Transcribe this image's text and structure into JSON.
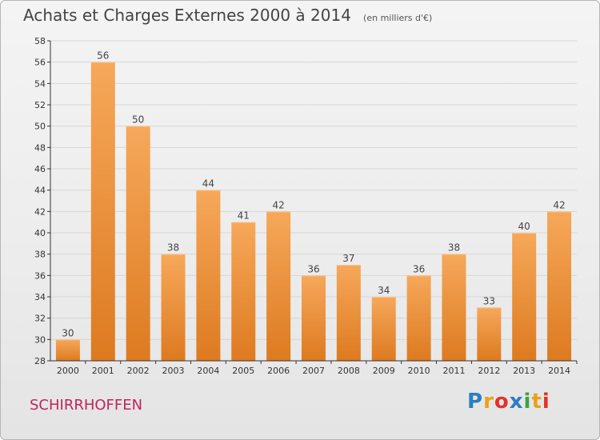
{
  "header": {
    "title": "Achats et Charges Externes 2000 à 2014",
    "subtitle": "(en milliers d'€)"
  },
  "footer": {
    "commune": "SCHIRRHOFFEN",
    "logo_text": "Proxiti",
    "logo_colors": [
      "#2a7fc0",
      "#e8a21a",
      "#e2322c",
      "#2a7fc0",
      "#3aa14a",
      "#e8a21a",
      "#e2322c"
    ]
  },
  "colors": {
    "bar_top": "#f6a85a",
    "bar_bottom": "#dd7a20",
    "grid": "#d6d6d6",
    "axis": "#333333"
  },
  "chart_data": {
    "type": "bar",
    "title": "Achats et Charges Externes 2000 à 2014",
    "subtitle": "(en milliers d'€)",
    "xlabel": "",
    "ylabel": "",
    "categories": [
      "2000",
      "2001",
      "2002",
      "2003",
      "2004",
      "2005",
      "2006",
      "2007",
      "2008",
      "2009",
      "2010",
      "2011",
      "2012",
      "2013",
      "2014"
    ],
    "values": [
      30,
      56,
      50,
      38,
      44,
      41,
      42,
      36,
      37,
      34,
      36,
      38,
      33,
      40,
      42
    ],
    "ylim": [
      28,
      58
    ],
    "yticks": [
      28,
      30,
      32,
      34,
      36,
      38,
      40,
      42,
      44,
      46,
      48,
      50,
      52,
      54,
      56,
      58
    ],
    "grid": true,
    "legend": "none",
    "data_labels": true
  }
}
